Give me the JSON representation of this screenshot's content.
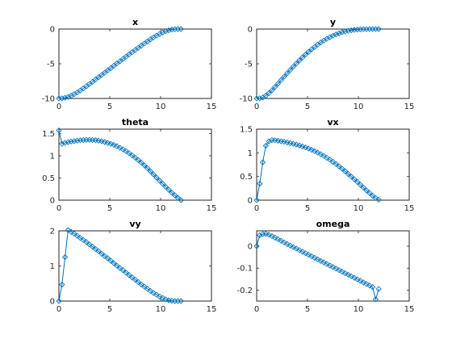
{
  "figure": {
    "background": "#ffffff",
    "line_color": "#0072bd"
  },
  "chart_data": [
    {
      "type": "line",
      "title": "x",
      "xlabel": "",
      "ylabel": "",
      "xlim": [
        0,
        15
      ],
      "ylim": [
        -10,
        0
      ],
      "xticks": [
        0,
        5,
        10,
        15
      ],
      "yticks": [
        -10,
        -5,
        0
      ],
      "grid": false,
      "marker": "diamond",
      "series": [
        {
          "x": [
            0,
            0.3,
            0.6,
            0.9,
            1.2,
            1.5,
            1.8,
            2.1,
            2.4,
            2.7,
            3.0,
            3.3,
            3.6,
            3.9,
            4.2,
            4.5,
            4.8,
            5.1,
            5.4,
            5.7,
            6.0,
            6.3,
            6.6,
            6.9,
            7.2,
            7.5,
            7.8,
            8.1,
            8.4,
            8.7,
            9.0,
            9.3,
            9.6,
            9.9,
            10.2,
            10.5,
            10.8,
            11.1,
            11.4,
            11.7,
            12.0
          ],
          "y": [
            -10.0,
            -9.98,
            -9.9,
            -9.78,
            -9.6,
            -9.38,
            -9.13,
            -8.85,
            -8.55,
            -8.24,
            -7.92,
            -7.6,
            -7.27,
            -6.94,
            -6.61,
            -6.28,
            -5.95,
            -5.62,
            -5.29,
            -4.96,
            -4.63,
            -4.3,
            -3.97,
            -3.65,
            -3.33,
            -3.01,
            -2.7,
            -2.39,
            -2.08,
            -1.78,
            -1.49,
            -1.21,
            -0.95,
            -0.71,
            -0.49,
            -0.31,
            -0.17,
            -0.07,
            -0.02,
            0.0,
            0.0
          ]
        }
      ]
    },
    {
      "type": "line",
      "title": "y",
      "xlabel": "",
      "ylabel": "",
      "xlim": [
        0,
        15
      ],
      "ylim": [
        -10,
        0
      ],
      "xticks": [
        0,
        5,
        10,
        15
      ],
      "yticks": [
        -10,
        -5,
        0
      ],
      "grid": false,
      "marker": "diamond",
      "series": [
        {
          "x": [
            0,
            0.3,
            0.6,
            0.9,
            1.2,
            1.5,
            1.8,
            2.1,
            2.4,
            2.7,
            3.0,
            3.3,
            3.6,
            3.9,
            4.2,
            4.5,
            4.8,
            5.1,
            5.4,
            5.7,
            6.0,
            6.3,
            6.6,
            6.9,
            7.2,
            7.5,
            7.8,
            8.1,
            8.4,
            8.7,
            9.0,
            9.3,
            9.6,
            9.9,
            10.2,
            10.5,
            10.8,
            11.1,
            11.4,
            11.7,
            12.0
          ],
          "y": [
            -10.0,
            -9.97,
            -9.85,
            -9.6,
            -9.25,
            -8.82,
            -8.35,
            -7.86,
            -7.36,
            -6.86,
            -6.37,
            -5.89,
            -5.42,
            -4.96,
            -4.52,
            -4.09,
            -3.68,
            -3.29,
            -2.92,
            -2.57,
            -2.24,
            -1.94,
            -1.66,
            -1.4,
            -1.17,
            -0.96,
            -0.77,
            -0.61,
            -0.47,
            -0.35,
            -0.25,
            -0.17,
            -0.11,
            -0.07,
            -0.04,
            -0.02,
            -0.01,
            0.0,
            0.0,
            0.0,
            0.0
          ]
        }
      ]
    },
    {
      "type": "line",
      "title": "theta",
      "xlabel": "",
      "ylabel": "",
      "xlim": [
        0,
        15
      ],
      "ylim": [
        0,
        1.6
      ],
      "xticks": [
        0,
        5,
        10,
        15
      ],
      "yticks": [
        0,
        0.5,
        1,
        1.5
      ],
      "grid": false,
      "marker": "diamond",
      "series": [
        {
          "x": [
            0,
            0.3,
            0.6,
            0.9,
            1.2,
            1.5,
            1.8,
            2.1,
            2.4,
            2.7,
            3.0,
            3.3,
            3.6,
            3.9,
            4.2,
            4.5,
            4.8,
            5.1,
            5.4,
            5.7,
            6.0,
            6.3,
            6.6,
            6.9,
            7.2,
            7.5,
            7.8,
            8.1,
            8.4,
            8.7,
            9.0,
            9.3,
            9.6,
            9.9,
            10.2,
            10.5,
            10.8,
            11.1,
            11.4,
            11.7,
            12.0
          ],
          "y": [
            1.57,
            1.27,
            1.29,
            1.31,
            1.32,
            1.33,
            1.34,
            1.35,
            1.355,
            1.36,
            1.36,
            1.355,
            1.35,
            1.34,
            1.33,
            1.31,
            1.29,
            1.27,
            1.245,
            1.215,
            1.18,
            1.145,
            1.105,
            1.06,
            1.01,
            0.96,
            0.905,
            0.845,
            0.785,
            0.72,
            0.65,
            0.58,
            0.51,
            0.44,
            0.37,
            0.3,
            0.235,
            0.17,
            0.11,
            0.05,
            0.0
          ]
        }
      ]
    },
    {
      "type": "line",
      "title": "vx",
      "xlabel": "",
      "ylabel": "",
      "xlim": [
        0,
        15
      ],
      "ylim": [
        0,
        1.5
      ],
      "xticks": [
        0,
        5,
        10,
        15
      ],
      "yticks": [
        0,
        0.5,
        1,
        1.5
      ],
      "grid": false,
      "marker": "diamond",
      "series": [
        {
          "x": [
            0,
            0.3,
            0.6,
            0.9,
            1.2,
            1.5,
            1.8,
            2.1,
            2.4,
            2.7,
            3.0,
            3.3,
            3.6,
            3.9,
            4.2,
            4.5,
            4.8,
            5.1,
            5.4,
            5.7,
            6.0,
            6.3,
            6.6,
            6.9,
            7.2,
            7.5,
            7.8,
            8.1,
            8.4,
            8.7,
            9.0,
            9.3,
            9.6,
            9.9,
            10.2,
            10.5,
            10.8,
            11.1,
            11.4,
            11.7,
            12.0
          ],
          "y": [
            0.0,
            0.35,
            0.8,
            1.15,
            1.24,
            1.27,
            1.265,
            1.255,
            1.245,
            1.235,
            1.22,
            1.205,
            1.19,
            1.175,
            1.155,
            1.135,
            1.115,
            1.09,
            1.065,
            1.035,
            1.005,
            0.97,
            0.935,
            0.895,
            0.855,
            0.81,
            0.765,
            0.715,
            0.665,
            0.61,
            0.555,
            0.5,
            0.44,
            0.385,
            0.325,
            0.265,
            0.205,
            0.15,
            0.095,
            0.045,
            0.01
          ]
        }
      ]
    },
    {
      "type": "line",
      "title": "vy",
      "xlabel": "",
      "ylabel": "",
      "xlim": [
        0,
        15
      ],
      "ylim": [
        0,
        2
      ],
      "xticks": [
        0,
        5,
        10,
        15
      ],
      "yticks": [
        0,
        1,
        2
      ],
      "grid": false,
      "marker": "diamond",
      "series": [
        {
          "x": [
            0,
            0.3,
            0.6,
            0.9,
            1.2,
            1.5,
            1.8,
            2.1,
            2.4,
            2.7,
            3.0,
            3.3,
            3.6,
            3.9,
            4.2,
            4.5,
            4.8,
            5.1,
            5.4,
            5.7,
            6.0,
            6.3,
            6.6,
            6.9,
            7.2,
            7.5,
            7.8,
            8.1,
            8.4,
            8.7,
            9.0,
            9.3,
            9.6,
            9.9,
            10.2,
            10.5,
            10.8,
            11.1,
            11.4,
            11.7,
            12.0
          ],
          "y": [
            0.0,
            0.47,
            1.25,
            2.02,
            1.97,
            1.92,
            1.86,
            1.8,
            1.74,
            1.68,
            1.61,
            1.55,
            1.48,
            1.42,
            1.35,
            1.28,
            1.22,
            1.15,
            1.08,
            1.01,
            0.94,
            0.88,
            0.81,
            0.74,
            0.67,
            0.61,
            0.54,
            0.47,
            0.41,
            0.35,
            0.29,
            0.23,
            0.18,
            0.13,
            0.09,
            0.05,
            0.02,
            0.01,
            0.0,
            0.0,
            0.0
          ]
        }
      ]
    },
    {
      "type": "line",
      "title": "omega",
      "xlabel": "",
      "ylabel": "",
      "xlim": [
        0,
        15
      ],
      "ylim": [
        -0.25,
        0.07
      ],
      "xticks": [
        0,
        5,
        10,
        15
      ],
      "yticks": [
        -0.2,
        -0.1,
        0
      ],
      "grid": false,
      "marker": "diamond",
      "series": [
        {
          "x": [
            0,
            0.3,
            0.6,
            0.9,
            1.2,
            1.5,
            1.8,
            2.1,
            2.4,
            2.7,
            3.0,
            3.3,
            3.6,
            3.9,
            4.2,
            4.5,
            4.8,
            5.1,
            5.4,
            5.7,
            6.0,
            6.3,
            6.6,
            6.9,
            7.2,
            7.5,
            7.8,
            8.1,
            8.4,
            8.7,
            9.0,
            9.3,
            9.6,
            9.9,
            10.2,
            10.5,
            10.8,
            11.1,
            11.4,
            11.7,
            12.0
          ],
          "y": [
            0.0,
            0.05,
            0.055,
            0.056,
            0.052,
            0.046,
            0.039,
            0.032,
            0.025,
            0.017,
            0.01,
            0.003,
            -0.004,
            -0.011,
            -0.018,
            -0.025,
            -0.032,
            -0.039,
            -0.046,
            -0.053,
            -0.06,
            -0.067,
            -0.074,
            -0.081,
            -0.088,
            -0.095,
            -0.102,
            -0.109,
            -0.116,
            -0.123,
            -0.13,
            -0.137,
            -0.144,
            -0.151,
            -0.158,
            -0.165,
            -0.172,
            -0.179,
            -0.186,
            -0.242,
            -0.195
          ]
        }
      ]
    }
  ]
}
